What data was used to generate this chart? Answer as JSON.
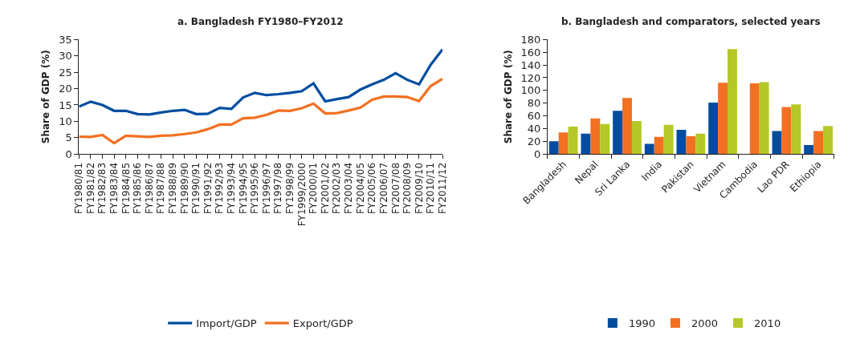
{
  "chart_data": [
    {
      "type": "line",
      "title": "a. Bangladesh FY1980–FY2012",
      "ylabel": "Share of GDP (%)",
      "categories": [
        "FY1980/81",
        "FY1981/82",
        "FY1982/83",
        "FY1983/84",
        "FY1984/85",
        "FY1985/86",
        "FY1986/87",
        "FY1987/88",
        "FY1988/89",
        "FY1989/90",
        "FY1990/91",
        "FY1991/92",
        "FY1992/93",
        "FY1993/94",
        "FY1994/95",
        "FY1995/96",
        "FY1996/97",
        "FY1997/98",
        "FY1998/99",
        "FY1999/2000",
        "FY2000/01",
        "FY2001/02",
        "FY2002/03",
        "FY2003/04",
        "FY2004/05",
        "FY2005/06",
        "FY2006/07",
        "FY2007/08",
        "FY2008/09",
        "FY2009/10",
        "FY2010/11",
        "FY2011/12"
      ],
      "series": [
        {
          "name": "Import/GDP",
          "color": "#004da0",
          "values": [
            14.5,
            16,
            15,
            13.2,
            13.2,
            12.2,
            12.1,
            12.7,
            13.2,
            13.5,
            12.2,
            12.3,
            14.1,
            13.8,
            17.3,
            18.7,
            18,
            18.3,
            18.7,
            19.2,
            21.6,
            16.1,
            16.8,
            17.4,
            19.7,
            21.3,
            22.7,
            24.7,
            22.7,
            21.3,
            27.3,
            32
          ]
        },
        {
          "name": "Export/GDP",
          "color": "#f37021",
          "values": [
            5.3,
            5.2,
            5.8,
            3.3,
            5.6,
            5.4,
            5.2,
            5.6,
            5.7,
            6.1,
            6.6,
            7.6,
            9,
            9,
            10.9,
            11.1,
            12,
            13.3,
            13.2,
            14,
            15.4,
            12.4,
            12.5,
            13.3,
            14.2,
            16.6,
            17.6,
            17.6,
            17.4,
            16.2,
            20.8,
            23
          ]
        }
      ],
      "ylim": [
        0,
        35
      ],
      "yticks": [
        0,
        5,
        10,
        15,
        20,
        25,
        30,
        35
      ],
      "legend": "bottom",
      "marker": "none",
      "line_style": "solid"
    },
    {
      "type": "bar",
      "title": "b. Bangladesh and comparators, selected years",
      "ylabel": "Share of GDP (%)",
      "categories": [
        "Bangladesh",
        "Nepal",
        "Sri Lanka",
        "India",
        "Pakistan",
        "Vietnam",
        "Cambodia",
        "Lao PDR",
        "Ethiopia"
      ],
      "series": [
        {
          "name": "1990",
          "color": "#004da0",
          "values": [
            20,
            32,
            68,
            16,
            38,
            81,
            null,
            36,
            14
          ]
        },
        {
          "name": "2000",
          "color": "#f37021",
          "values": [
            34,
            56,
            88,
            27,
            28,
            112,
            111,
            74,
            36
          ]
        },
        {
          "name": "2010",
          "color": "#b5c827",
          "values": [
            43,
            47,
            52,
            46,
            32,
            165,
            113,
            78,
            44
          ]
        }
      ],
      "ylim": [
        0,
        180
      ],
      "yticks": [
        0,
        20,
        40,
        60,
        80,
        100,
        120,
        140,
        160,
        180
      ],
      "legend": "bottom"
    }
  ]
}
